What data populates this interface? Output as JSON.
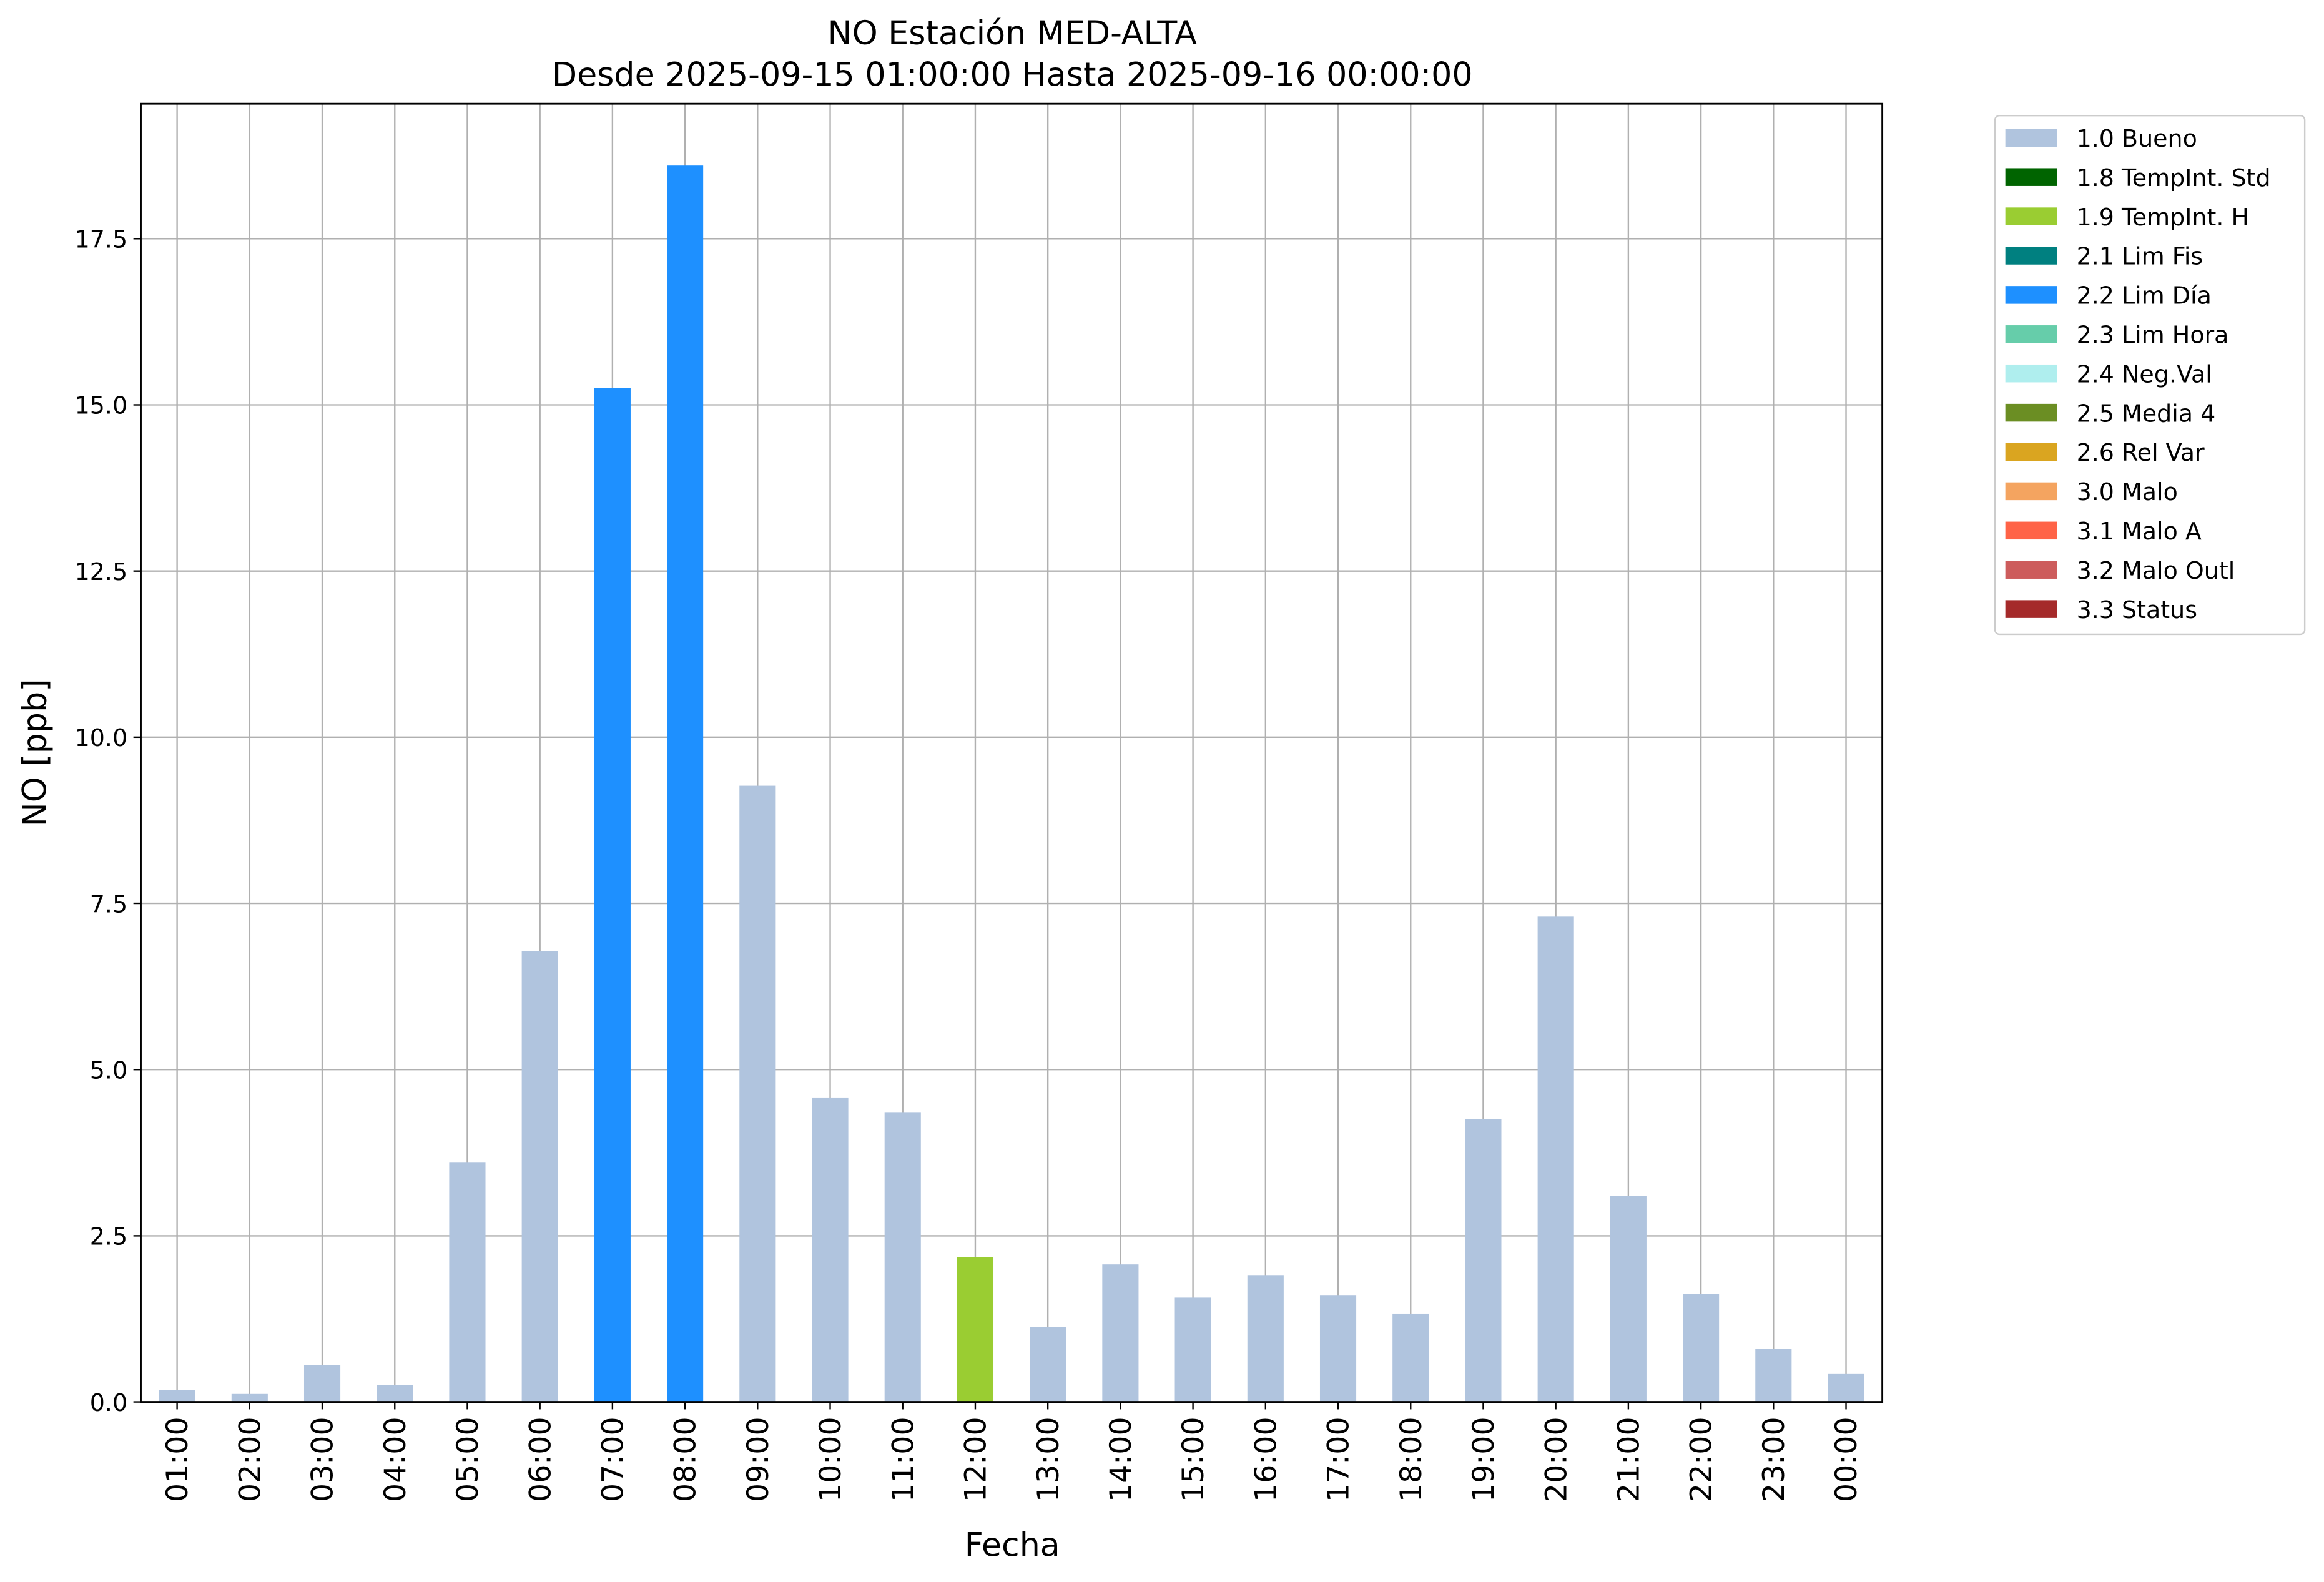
{
  "chart_data": {
    "type": "bar",
    "stacked": true,
    "title": "NO Estación MED-ALTA",
    "subtitle": "Desde 2025-09-15 01:00:00 Hasta 2025-09-16 00:00:00",
    "x_label": "Fecha",
    "y_label": "NO [ppb]",
    "categories": [
      "01:00",
      "02:00",
      "03:00",
      "04:00",
      "05:00",
      "06:00",
      "07:00",
      "08:00",
      "09:00",
      "10:00",
      "11:00",
      "12:00",
      "13:00",
      "14:00",
      "15:00",
      "16:00",
      "17:00",
      "18:00",
      "19:00",
      "20:00",
      "21:00",
      "22:00",
      "23:00",
      "00:00"
    ],
    "series": [
      {
        "name": "1.0 Bueno",
        "color": "#b0c4de",
        "values": [
          0.18,
          0.12,
          0.55,
          0.25,
          3.6,
          6.78,
          null,
          null,
          9.27,
          4.58,
          4.36,
          null,
          1.13,
          2.07,
          1.57,
          1.9,
          1.6,
          1.33,
          4.26,
          7.3,
          3.1,
          1.63,
          0.8,
          0.42
        ]
      },
      {
        "name": "1.8 TempInt. Std",
        "color": "#006400",
        "values": [
          null,
          null,
          null,
          null,
          null,
          null,
          null,
          null,
          null,
          null,
          null,
          null,
          null,
          null,
          null,
          null,
          null,
          null,
          null,
          null,
          null,
          null,
          null,
          null
        ]
      },
      {
        "name": "1.9 TempInt. H",
        "color": "#9acd32",
        "values": [
          null,
          null,
          null,
          null,
          null,
          null,
          null,
          null,
          null,
          null,
          null,
          2.18,
          null,
          null,
          null,
          null,
          null,
          null,
          null,
          null,
          null,
          null,
          null,
          null
        ]
      },
      {
        "name": "2.1 Lim Fis",
        "color": "#008080",
        "values": [
          null,
          null,
          null,
          null,
          null,
          null,
          null,
          null,
          null,
          null,
          null,
          null,
          null,
          null,
          null,
          null,
          null,
          null,
          null,
          null,
          null,
          null,
          null,
          null
        ]
      },
      {
        "name": "2.2 Lim Día",
        "color": "#1e90ff",
        "values": [
          null,
          null,
          null,
          null,
          null,
          null,
          15.25,
          18.6,
          null,
          null,
          null,
          null,
          null,
          null,
          null,
          null,
          null,
          null,
          null,
          null,
          null,
          null,
          null,
          null
        ]
      },
      {
        "name": "2.3 Lim Hora",
        "color": "#66cdaa",
        "values": [
          null,
          null,
          null,
          null,
          null,
          null,
          null,
          null,
          null,
          null,
          null,
          null,
          null,
          null,
          null,
          null,
          null,
          null,
          null,
          null,
          null,
          null,
          null,
          null
        ]
      },
      {
        "name": "2.4 Neg.Val",
        "color": "#afeeee",
        "values": [
          null,
          null,
          null,
          null,
          null,
          null,
          null,
          null,
          null,
          null,
          null,
          null,
          null,
          null,
          null,
          null,
          null,
          null,
          null,
          null,
          null,
          null,
          null,
          null
        ]
      },
      {
        "name": "2.5 Media 4",
        "color": "#6b8e23",
        "values": [
          null,
          null,
          null,
          null,
          null,
          null,
          null,
          null,
          null,
          null,
          null,
          null,
          null,
          null,
          null,
          null,
          null,
          null,
          null,
          null,
          null,
          null,
          null,
          null
        ]
      },
      {
        "name": "2.6 Rel Var",
        "color": "#daa520",
        "values": [
          null,
          null,
          null,
          null,
          null,
          null,
          null,
          null,
          null,
          null,
          null,
          null,
          null,
          null,
          null,
          null,
          null,
          null,
          null,
          null,
          null,
          null,
          null,
          null
        ]
      },
      {
        "name": "3.0 Malo",
        "color": "#f4a460",
        "values": [
          null,
          null,
          null,
          null,
          null,
          null,
          null,
          null,
          null,
          null,
          null,
          null,
          null,
          null,
          null,
          null,
          null,
          null,
          null,
          null,
          null,
          null,
          null,
          null
        ]
      },
      {
        "name": "3.1 Malo A",
        "color": "#ff6347",
        "values": [
          null,
          null,
          null,
          null,
          null,
          null,
          null,
          null,
          null,
          null,
          null,
          null,
          null,
          null,
          null,
          null,
          null,
          null,
          null,
          null,
          null,
          null,
          null,
          null
        ]
      },
      {
        "name": "3.2 Malo Outl",
        "color": "#cd5c5c",
        "values": [
          null,
          null,
          null,
          null,
          null,
          null,
          null,
          null,
          null,
          null,
          null,
          null,
          null,
          null,
          null,
          null,
          null,
          null,
          null,
          null,
          null,
          null,
          null,
          null
        ]
      },
      {
        "name": "3.3 Status",
        "color": "#a52a2a",
        "values": [
          null,
          null,
          null,
          null,
          null,
          null,
          null,
          null,
          null,
          null,
          null,
          null,
          null,
          null,
          null,
          null,
          null,
          null,
          null,
          null,
          null,
          null,
          null,
          null
        ]
      }
    ],
    "ylim": [
      0,
      19.53
    ],
    "yticks": [
      {
        "value": 0,
        "label": "0.0"
      },
      2.5,
      {
        "value": 5,
        "label": "5.0"
      },
      7.5,
      {
        "value": 10,
        "label": "10.0"
      },
      12.5,
      {
        "value": 15,
        "label": "15.0"
      },
      17.5
    ],
    "grid": true,
    "legend": "outside-right"
  }
}
